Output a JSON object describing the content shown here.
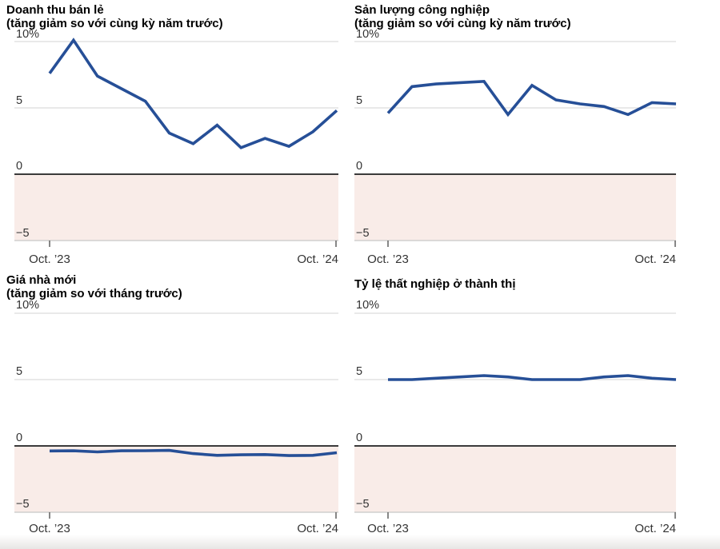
{
  "style": {
    "line_color": "#264f97",
    "negative_area_color": "#f9ece8",
    "zero_line_color": "#3b3b3b",
    "gridline_color": "#d3d3d3",
    "axis_line_color": "#c8c8c8",
    "tick_color": "#5f5f5f"
  },
  "axis": {
    "y_tick_labels": [
      "10%",
      "5",
      "0",
      "−5"
    ],
    "y_tick_values": [
      10,
      5,
      0,
      -5
    ],
    "x_tick_labels": [
      "Oct. ’23",
      "Oct. ’24"
    ]
  },
  "chart_data": [
    {
      "type": "line",
      "title": "Doanh thu bán lẻ",
      "subtitle": "(tăng giảm so với cùng kỳ năm trước)",
      "unit": "%",
      "ylim": [
        -5,
        10
      ],
      "x_tick_labels": [
        "Oct. ’23",
        "Oct. ’24"
      ],
      "num_slots": 13,
      "slots": [
        0,
        1,
        2,
        4,
        5,
        6,
        7,
        8,
        9,
        10,
        11,
        12
      ],
      "values": [
        7.6,
        10.1,
        7.4,
        5.5,
        3.1,
        2.3,
        3.7,
        2.0,
        2.7,
        2.1,
        3.2,
        4.8
      ],
      "grid": "horizontal",
      "negative_region_shaded": true
    },
    {
      "type": "line",
      "title": "Sản lượng công nghiệp",
      "subtitle": "(tăng giảm so với cùng kỳ năm trước)",
      "unit": "%",
      "ylim": [
        -5,
        10
      ],
      "x_tick_labels": [
        "Oct. ’23",
        "Oct. ’24"
      ],
      "num_slots": 13,
      "slots": [
        0,
        1,
        2,
        4,
        5,
        6,
        7,
        8,
        9,
        10,
        11,
        12
      ],
      "values": [
        4.6,
        6.6,
        6.8,
        7.0,
        4.5,
        6.7,
        5.6,
        5.3,
        5.1,
        4.5,
        5.4,
        5.3
      ],
      "grid": "horizontal",
      "negative_region_shaded": true
    },
    {
      "type": "line",
      "title": "Giá nhà mới",
      "subtitle": "(tăng giảm so với tháng trước)",
      "unit": "%",
      "ylim": [
        -5,
        10
      ],
      "x_tick_labels": [
        "Oct. ’23",
        "Oct. ’24"
      ],
      "num_slots": 13,
      "slots": [
        0,
        1,
        2,
        3,
        4,
        5,
        6,
        7,
        8,
        9,
        10,
        11,
        12
      ],
      "values": [
        -0.38,
        -0.37,
        -0.45,
        -0.37,
        -0.36,
        -0.34,
        -0.58,
        -0.71,
        -0.67,
        -0.65,
        -0.73,
        -0.71,
        -0.51
      ],
      "grid": "horizontal",
      "negative_region_shaded": true
    },
    {
      "type": "line",
      "title": "Tỷ lệ thất nghiệp ở thành thị",
      "unit": "%",
      "ylim": [
        -5,
        10
      ],
      "x_tick_labels": [
        "Oct. ’23",
        "Oct. ’24"
      ],
      "num_slots": 13,
      "slots": [
        0,
        1,
        2,
        3,
        4,
        5,
        6,
        7,
        8,
        9,
        10,
        11,
        12
      ],
      "values": [
        5.0,
        5.0,
        5.1,
        5.2,
        5.3,
        5.2,
        5.0,
        5.0,
        5.0,
        5.2,
        5.3,
        5.1,
        5.0
      ],
      "grid": "horizontal",
      "negative_region_shaded": true
    }
  ]
}
